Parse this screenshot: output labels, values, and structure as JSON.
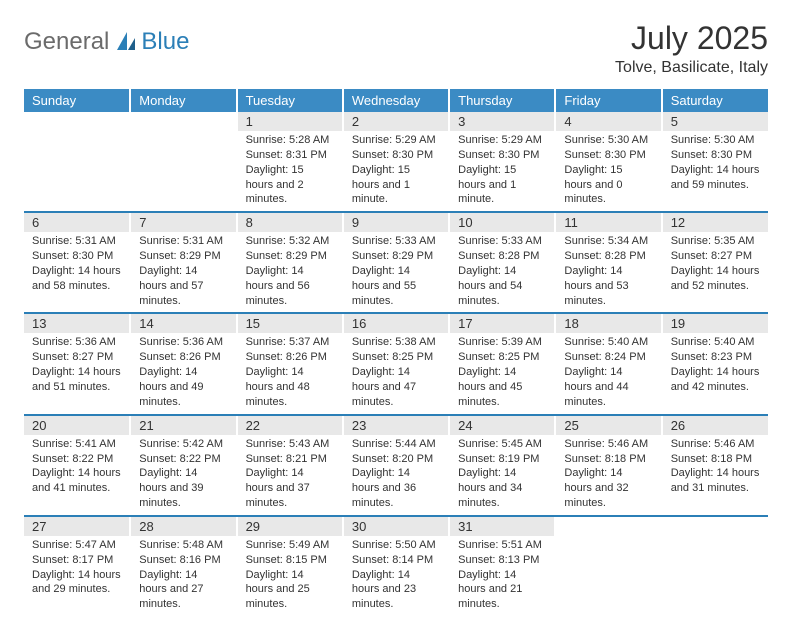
{
  "brand": {
    "part1": "General",
    "part2": "Blue"
  },
  "title": "July 2025",
  "location": "Tolve, Basilicate, Italy",
  "colors": {
    "header_bg": "#3b8bc4",
    "header_text": "#ffffff",
    "daynum_bg": "#e8e8e8",
    "row_divider": "#2b7fb7",
    "logo_gray": "#6b6b6b",
    "logo_blue": "#2b7fb7"
  },
  "weekdays": [
    "Sunday",
    "Monday",
    "Tuesday",
    "Wednesday",
    "Thursday",
    "Friday",
    "Saturday"
  ],
  "weeks": [
    [
      null,
      null,
      {
        "n": "1",
        "sr": "Sunrise: 5:28 AM",
        "ss": "Sunset: 8:31 PM",
        "dl": "Daylight: 15 hours and 2 minutes."
      },
      {
        "n": "2",
        "sr": "Sunrise: 5:29 AM",
        "ss": "Sunset: 8:30 PM",
        "dl": "Daylight: 15 hours and 1 minute."
      },
      {
        "n": "3",
        "sr": "Sunrise: 5:29 AM",
        "ss": "Sunset: 8:30 PM",
        "dl": "Daylight: 15 hours and 1 minute."
      },
      {
        "n": "4",
        "sr": "Sunrise: 5:30 AM",
        "ss": "Sunset: 8:30 PM",
        "dl": "Daylight: 15 hours and 0 minutes."
      },
      {
        "n": "5",
        "sr": "Sunrise: 5:30 AM",
        "ss": "Sunset: 8:30 PM",
        "dl": "Daylight: 14 hours and 59 minutes."
      }
    ],
    [
      {
        "n": "6",
        "sr": "Sunrise: 5:31 AM",
        "ss": "Sunset: 8:30 PM",
        "dl": "Daylight: 14 hours and 58 minutes."
      },
      {
        "n": "7",
        "sr": "Sunrise: 5:31 AM",
        "ss": "Sunset: 8:29 PM",
        "dl": "Daylight: 14 hours and 57 minutes."
      },
      {
        "n": "8",
        "sr": "Sunrise: 5:32 AM",
        "ss": "Sunset: 8:29 PM",
        "dl": "Daylight: 14 hours and 56 minutes."
      },
      {
        "n": "9",
        "sr": "Sunrise: 5:33 AM",
        "ss": "Sunset: 8:29 PM",
        "dl": "Daylight: 14 hours and 55 minutes."
      },
      {
        "n": "10",
        "sr": "Sunrise: 5:33 AM",
        "ss": "Sunset: 8:28 PM",
        "dl": "Daylight: 14 hours and 54 minutes."
      },
      {
        "n": "11",
        "sr": "Sunrise: 5:34 AM",
        "ss": "Sunset: 8:28 PM",
        "dl": "Daylight: 14 hours and 53 minutes."
      },
      {
        "n": "12",
        "sr": "Sunrise: 5:35 AM",
        "ss": "Sunset: 8:27 PM",
        "dl": "Daylight: 14 hours and 52 minutes."
      }
    ],
    [
      {
        "n": "13",
        "sr": "Sunrise: 5:36 AM",
        "ss": "Sunset: 8:27 PM",
        "dl": "Daylight: 14 hours and 51 minutes."
      },
      {
        "n": "14",
        "sr": "Sunrise: 5:36 AM",
        "ss": "Sunset: 8:26 PM",
        "dl": "Daylight: 14 hours and 49 minutes."
      },
      {
        "n": "15",
        "sr": "Sunrise: 5:37 AM",
        "ss": "Sunset: 8:26 PM",
        "dl": "Daylight: 14 hours and 48 minutes."
      },
      {
        "n": "16",
        "sr": "Sunrise: 5:38 AM",
        "ss": "Sunset: 8:25 PM",
        "dl": "Daylight: 14 hours and 47 minutes."
      },
      {
        "n": "17",
        "sr": "Sunrise: 5:39 AM",
        "ss": "Sunset: 8:25 PM",
        "dl": "Daylight: 14 hours and 45 minutes."
      },
      {
        "n": "18",
        "sr": "Sunrise: 5:40 AM",
        "ss": "Sunset: 8:24 PM",
        "dl": "Daylight: 14 hours and 44 minutes."
      },
      {
        "n": "19",
        "sr": "Sunrise: 5:40 AM",
        "ss": "Sunset: 8:23 PM",
        "dl": "Daylight: 14 hours and 42 minutes."
      }
    ],
    [
      {
        "n": "20",
        "sr": "Sunrise: 5:41 AM",
        "ss": "Sunset: 8:22 PM",
        "dl": "Daylight: 14 hours and 41 minutes."
      },
      {
        "n": "21",
        "sr": "Sunrise: 5:42 AM",
        "ss": "Sunset: 8:22 PM",
        "dl": "Daylight: 14 hours and 39 minutes."
      },
      {
        "n": "22",
        "sr": "Sunrise: 5:43 AM",
        "ss": "Sunset: 8:21 PM",
        "dl": "Daylight: 14 hours and 37 minutes."
      },
      {
        "n": "23",
        "sr": "Sunrise: 5:44 AM",
        "ss": "Sunset: 8:20 PM",
        "dl": "Daylight: 14 hours and 36 minutes."
      },
      {
        "n": "24",
        "sr": "Sunrise: 5:45 AM",
        "ss": "Sunset: 8:19 PM",
        "dl": "Daylight: 14 hours and 34 minutes."
      },
      {
        "n": "25",
        "sr": "Sunrise: 5:46 AM",
        "ss": "Sunset: 8:18 PM",
        "dl": "Daylight: 14 hours and 32 minutes."
      },
      {
        "n": "26",
        "sr": "Sunrise: 5:46 AM",
        "ss": "Sunset: 8:18 PM",
        "dl": "Daylight: 14 hours and 31 minutes."
      }
    ],
    [
      {
        "n": "27",
        "sr": "Sunrise: 5:47 AM",
        "ss": "Sunset: 8:17 PM",
        "dl": "Daylight: 14 hours and 29 minutes."
      },
      {
        "n": "28",
        "sr": "Sunrise: 5:48 AM",
        "ss": "Sunset: 8:16 PM",
        "dl": "Daylight: 14 hours and 27 minutes."
      },
      {
        "n": "29",
        "sr": "Sunrise: 5:49 AM",
        "ss": "Sunset: 8:15 PM",
        "dl": "Daylight: 14 hours and 25 minutes."
      },
      {
        "n": "30",
        "sr": "Sunrise: 5:50 AM",
        "ss": "Sunset: 8:14 PM",
        "dl": "Daylight: 14 hours and 23 minutes."
      },
      {
        "n": "31",
        "sr": "Sunrise: 5:51 AM",
        "ss": "Sunset: 8:13 PM",
        "dl": "Daylight: 14 hours and 21 minutes."
      },
      null,
      null
    ]
  ]
}
